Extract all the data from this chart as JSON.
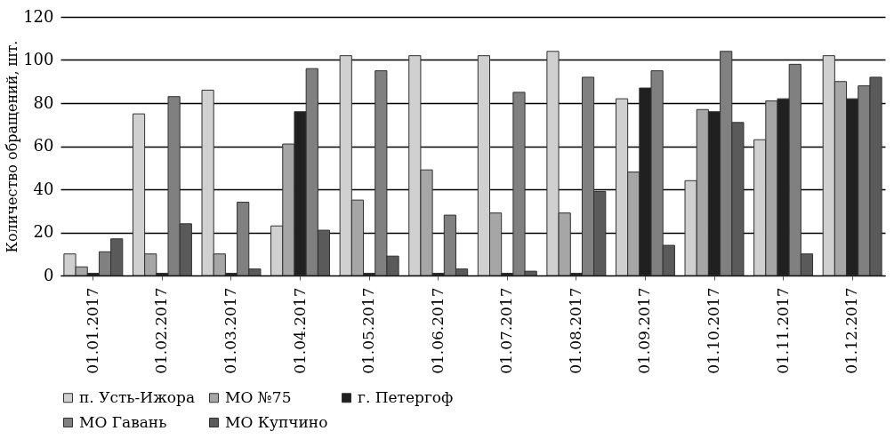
{
  "chart_data": {
    "type": "bar",
    "ylabel": "Количество обращений, шт.",
    "categories": [
      "01.01.2017",
      "01.02.2017",
      "01.03.2017",
      "01.04.2017",
      "01.05.2017",
      "01.06.2017",
      "01.07.2017",
      "01.08.2017",
      "01.09.2017",
      "01.10.2017",
      "01.11.2017",
      "01.12.2017"
    ],
    "series": [
      {
        "name": "п. Усть-Ижора",
        "color": "#d0d0d0",
        "values": [
          10,
          75,
          86,
          23,
          102,
          102,
          102,
          104,
          82,
          44,
          63,
          102
        ]
      },
      {
        "name": "МО №75",
        "color": "#a6a6a6",
        "values": [
          4,
          10,
          10,
          61,
          35,
          49,
          29,
          29,
          48,
          77,
          81,
          90
        ]
      },
      {
        "name": "г. Петергоф",
        "color": "#202020",
        "values": [
          1,
          1,
          1,
          76,
          1,
          1,
          1,
          1,
          87,
          76,
          82,
          82
        ]
      },
      {
        "name": "МО Гавань",
        "color": "#808080",
        "values": [
          11,
          83,
          34,
          96,
          95,
          28,
          85,
          92,
          95,
          104,
          98,
          88
        ]
      },
      {
        "name": "МО Купчино",
        "color": "#5a5a5a",
        "values": [
          17,
          24,
          3,
          21,
          9,
          3,
          2,
          39,
          14,
          71,
          10,
          92
        ]
      }
    ],
    "ylim": [
      0,
      120
    ],
    "yticks": [
      0,
      20,
      40,
      60,
      80,
      100,
      120
    ],
    "grid": "y",
    "legend": "bottom"
  }
}
